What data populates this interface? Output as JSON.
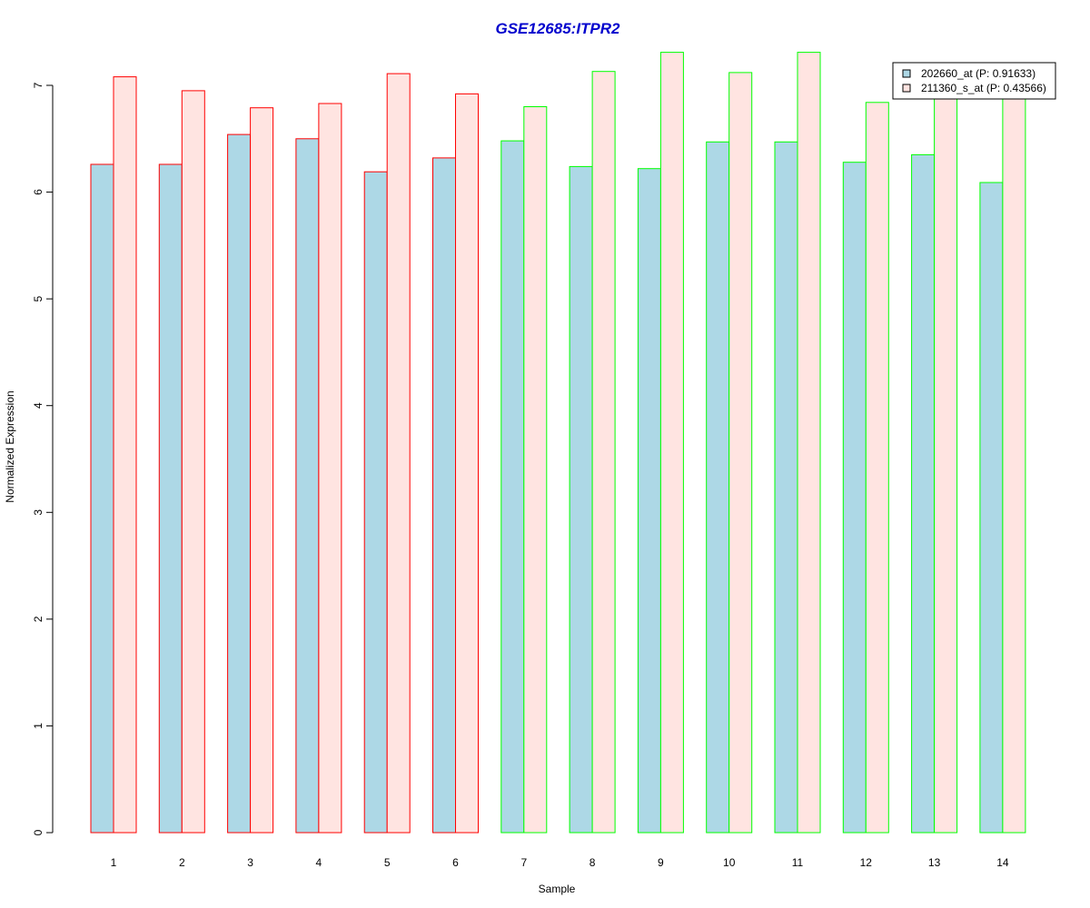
{
  "chart_data": {
    "type": "bar",
    "title": "GSE12685:ITPR2",
    "xlabel": "Sample",
    "ylabel": "Normalized Expression",
    "categories": [
      "1",
      "2",
      "3",
      "4",
      "5",
      "6",
      "7",
      "8",
      "9",
      "10",
      "11",
      "12",
      "13",
      "14"
    ],
    "series": [
      {
        "name": "202660_at (P: 0.91633)",
        "values": [
          6.26,
          6.26,
          6.54,
          6.5,
          6.19,
          6.32,
          6.48,
          6.24,
          6.22,
          6.47,
          6.47,
          6.28,
          6.35,
          6.09
        ]
      },
      {
        "name": "211360_s_at (P: 0.43566)",
        "values": [
          7.08,
          6.95,
          6.79,
          6.83,
          7.11,
          6.92,
          6.8,
          7.13,
          7.31,
          7.12,
          7.31,
          6.84,
          6.9,
          6.9
        ]
      }
    ],
    "groups": [
      1,
      1,
      1,
      1,
      1,
      1,
      2,
      2,
      2,
      2,
      2,
      2,
      2,
      2
    ],
    "ylim": [
      0,
      7.3
    ],
    "yticks": [
      0,
      1,
      2,
      3,
      4,
      5,
      6,
      7
    ],
    "grid": false,
    "legend_position": "top-right",
    "colors": {
      "title": "#0000cd",
      "series_fill": [
        "#add8e6",
        "#ffe4e1"
      ],
      "group_border": {
        "1": "#ff0000",
        "2": "#00ff00"
      },
      "axis": "#000000"
    }
  }
}
